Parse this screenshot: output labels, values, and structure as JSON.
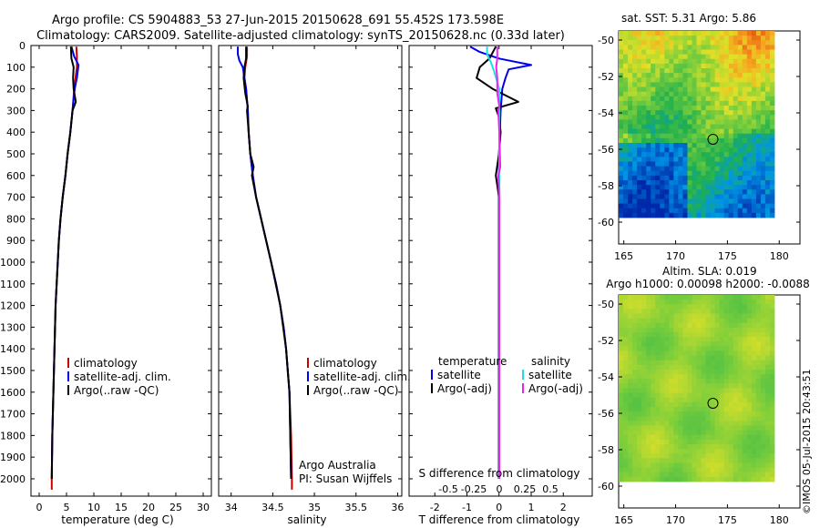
{
  "header": {
    "title_line1": "Argo profile: CS 5904883_53 27-Jun-2015 20150628_691 55.452S 173.598E",
    "title_line2": "Climatology: CARS2009. Satellite-adjusted climatology: synTS_20150628.nc (0.33d later)"
  },
  "colors": {
    "climatology": "#cc0000",
    "satellite": "#0000ee",
    "argo": "#000000",
    "salinity_satellite": "#22dddd",
    "salinity_argo": "#ee22ee"
  },
  "chart_data": [
    {
      "type": "line",
      "id": "temperature",
      "xlabel": "temperature (deg C)",
      "ylabel": "",
      "xlim": [
        -1.5,
        31.5
      ],
      "ylim": [
        2080,
        0
      ],
      "xticks": [
        0,
        5,
        10,
        15,
        20,
        25,
        30
      ],
      "yticks": [
        0,
        100,
        200,
        300,
        400,
        500,
        600,
        700,
        800,
        900,
        1000,
        1100,
        1200,
        1300,
        1400,
        1500,
        1600,
        1700,
        1800,
        1900,
        2000
      ],
      "legend": [
        "climatology",
        "satellite-adj. clim.",
        "Argo(..raw -QC)"
      ],
      "series": [
        {
          "name": "climatology",
          "depth": [
            5,
            50,
            100,
            200,
            300,
            400,
            500,
            600,
            700,
            800,
            900,
            1000,
            1100,
            1200,
            1400,
            1600,
            1800,
            2000,
            2050
          ],
          "values": [
            6.8,
            6.9,
            6.9,
            6.4,
            6.1,
            5.7,
            5.2,
            4.8,
            4.3,
            3.9,
            3.6,
            3.4,
            3.2,
            3.0,
            2.8,
            2.6,
            2.4,
            2.3,
            2.3
          ]
        },
        {
          "name": "satellite-adj. clim.",
          "depth": [
            5,
            50,
            90,
            150,
            200,
            300,
            400,
            500,
            600,
            700,
            800,
            900,
            1000,
            1100,
            1200,
            1400,
            1600,
            1800,
            2000
          ],
          "values": [
            5.9,
            6.4,
            7.2,
            6.9,
            6.5,
            6.1,
            5.7,
            5.2,
            4.8,
            4.3,
            3.9,
            3.6,
            3.4,
            3.2,
            3.0,
            2.8,
            2.6,
            2.4,
            2.3
          ]
        },
        {
          "name": "Argo(..raw -QC)",
          "depth": [
            5,
            60,
            100,
            150,
            200,
            260,
            300,
            400,
            500,
            600,
            700,
            800,
            900,
            1000,
            1200,
            1400,
            1600,
            1800,
            2000
          ],
          "values": [
            5.8,
            5.9,
            6.3,
            6.2,
            6.3,
            6.7,
            6.1,
            5.7,
            5.2,
            4.8,
            4.3,
            3.9,
            3.6,
            3.4,
            3.0,
            2.8,
            2.6,
            2.4,
            2.3
          ]
        }
      ]
    },
    {
      "type": "line",
      "id": "salinity",
      "xlabel": "salinity",
      "ylabel": "",
      "xlim": [
        33.85,
        36.05
      ],
      "ylim": [
        2080,
        0
      ],
      "xticks": [
        34,
        34.5,
        35,
        35.5,
        36
      ],
      "xtick_labels": [
        "34",
        "34.5",
        "35",
        "35.5",
        "36"
      ],
      "legend": [
        "climatology",
        "satellite-adj. clim.",
        "Argo(..raw -QC)"
      ],
      "annotation_line1": "Argo Australia",
      "annotation_line2": "PI: Susan Wijffels",
      "series": [
        {
          "name": "climatology",
          "depth": [
            5,
            50,
            100,
            150,
            200,
            300,
            400,
            500,
            600,
            700,
            800,
            900,
            1000,
            1100,
            1200,
            1300,
            1400,
            1500,
            1600,
            1800,
            2000,
            2050
          ],
          "values": [
            34.19,
            34.19,
            34.17,
            34.16,
            34.18,
            34.2,
            34.21,
            34.23,
            34.26,
            34.3,
            34.36,
            34.42,
            34.48,
            34.54,
            34.59,
            34.63,
            34.66,
            34.68,
            34.7,
            34.72,
            34.73,
            34.73
          ]
        },
        {
          "name": "satellite-adj. clim.",
          "depth": [
            5,
            40,
            70,
            100,
            200,
            300,
            400,
            500,
            600,
            700,
            800,
            900,
            1000,
            1100,
            1200,
            1300,
            1400,
            1500,
            1600,
            1800,
            2000
          ],
          "values": [
            34.08,
            34.08,
            34.1,
            34.14,
            34.18,
            34.2,
            34.21,
            34.23,
            34.26,
            34.3,
            34.36,
            34.42,
            34.48,
            34.54,
            34.59,
            34.63,
            34.66,
            34.68,
            34.7,
            34.71,
            34.72
          ]
        },
        {
          "name": "Argo(..raw -QC)",
          "depth": [
            5,
            60,
            100,
            150,
            220,
            280,
            300,
            400,
            500,
            560,
            600,
            700,
            800,
            900,
            1000,
            1200,
            1400,
            1600,
            1800,
            2000
          ],
          "values": [
            34.18,
            34.18,
            34.16,
            34.15,
            34.17,
            34.2,
            34.19,
            34.21,
            34.23,
            34.27,
            34.25,
            34.3,
            34.36,
            34.42,
            34.48,
            34.59,
            34.66,
            34.7,
            34.71,
            34.72
          ]
        }
      ]
    },
    {
      "type": "line",
      "id": "difference",
      "xlabel": "T difference from climatology",
      "xlabel_top": "S difference from climatology",
      "xlim": [
        -2.8,
        2.9
      ],
      "ylim": [
        2080,
        0
      ],
      "xticks": [
        -2,
        -1,
        0,
        1,
        2
      ],
      "xtick_labels": [
        "-2",
        "-1",
        "0",
        "1",
        "2"
      ],
      "s_xticks": [
        -0.5,
        -0.25,
        0,
        0.25,
        0.5
      ],
      "s_xtick_labels": [
        "-0.5",
        "-0.25",
        "0",
        "0.25",
        "0.5"
      ],
      "legend_temperature_title": "temperature",
      "legend_salinity_title": "salinity",
      "legend_temperature": [
        "satellite",
        "Argo(-adj)"
      ],
      "legend_salinity": [
        "satellite",
        "Argo(-adj)"
      ],
      "series": [
        {
          "name": "T satellite",
          "depth": [
            5,
            30,
            60,
            90,
            110,
            150,
            200,
            300,
            500,
            800,
            1000,
            1300,
            1500,
            2000
          ],
          "values": [
            -0.9,
            -0.6,
            0.0,
            1.0,
            0.3,
            0.2,
            0.1,
            0.05,
            0.0,
            0.0,
            0.0,
            0.0,
            0.0,
            0.0
          ]
        },
        {
          "name": "T Argo(-adj)",
          "depth": [
            5,
            60,
            100,
            150,
            200,
            260,
            290,
            330,
            400,
            500,
            600,
            700,
            800,
            1000,
            1200,
            1400,
            1600,
            2000
          ],
          "values": [
            -0.1,
            -0.3,
            -0.6,
            -0.7,
            -0.2,
            0.6,
            -0.1,
            0.0,
            0.05,
            0.0,
            -0.1,
            0.0,
            0.0,
            0.0,
            0.0,
            0.0,
            0.0,
            0.0
          ]
        },
        {
          "name": "S satellite",
          "depth": [
            5,
            40,
            80,
            120,
            200,
            300,
            500,
            800,
            1000,
            1300,
            1600,
            2000
          ],
          "values": [
            -0.12,
            -0.12,
            -0.08,
            -0.05,
            0.0,
            0.0,
            0.0,
            0.0,
            0.0,
            0.0,
            0.0,
            0.0
          ]
        },
        {
          "name": "S Argo(-adj)",
          "depth": [
            5,
            60,
            100,
            150,
            220,
            280,
            300,
            400,
            560,
            600,
            700,
            1000,
            1400,
            2000
          ],
          "values": [
            -0.02,
            -0.02,
            -0.03,
            -0.02,
            -0.02,
            0.0,
            -0.01,
            0.0,
            0.01,
            -0.01,
            0.0,
            0.0,
            0.0,
            0.0
          ]
        }
      ]
    },
    {
      "type": "heatmap",
      "id": "sst_map",
      "title": "sat. SST: 5.31  Argo: 5.86",
      "xlim": [
        164.5,
        182
      ],
      "ylim": [
        -61.2,
        -49.5
      ],
      "xticks": [
        165,
        170,
        175,
        180
      ],
      "yticks": [
        -50,
        -52,
        -54,
        -56,
        -58,
        -60
      ],
      "float_position": [
        173.598,
        -55.452
      ]
    },
    {
      "type": "heatmap",
      "id": "sla_map",
      "title_line1": "Altim. SLA: 0.019",
      "title_line2": "Argo h1000: 0.00098 h2000: -0.0088",
      "xlim": [
        164.5,
        182
      ],
      "ylim": [
        -61.2,
        -49.5
      ],
      "xticks": [
        165,
        170,
        175,
        180
      ],
      "yticks": [
        -50,
        -52,
        -54,
        -56,
        -58,
        -60
      ],
      "float_position": [
        173.598,
        -55.452
      ]
    }
  ],
  "footer": {
    "stamp": "©IMOS 05-Jul-2015 20:43:51"
  }
}
